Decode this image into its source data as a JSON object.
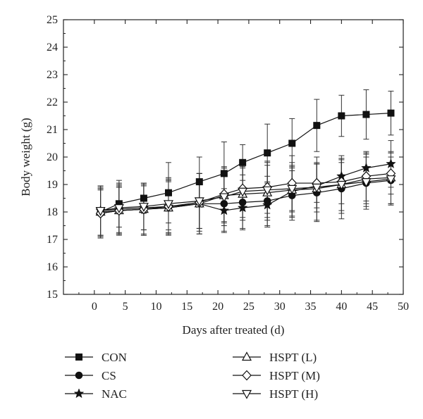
{
  "chart_data": {
    "type": "line",
    "title": "",
    "xlabel": "Days after treated (d)",
    "ylabel": "Body weight (g)",
    "xlim": [
      -5,
      50
    ],
    "ylim": [
      15,
      25
    ],
    "xticks": [
      0,
      5,
      10,
      15,
      20,
      25,
      30,
      35,
      40,
      45,
      50
    ],
    "yticks": [
      15,
      16,
      17,
      18,
      19,
      20,
      21,
      22,
      23,
      24,
      25
    ],
    "grid": false,
    "legend_position": "bottom",
    "series": [
      {
        "name": "CON",
        "marker": "square-filled",
        "x": [
          1,
          4,
          8,
          12,
          17,
          21,
          24,
          28,
          32,
          36,
          40,
          44,
          48
        ],
        "y": [
          18.0,
          18.3,
          18.5,
          18.7,
          19.1,
          19.4,
          19.8,
          20.15,
          20.5,
          21.15,
          21.5,
          21.55,
          21.6
        ],
        "err": [
          0.9,
          0.85,
          0.55,
          1.1,
          0.9,
          1.15,
          0.65,
          1.05,
          0.9,
          0.95,
          0.75,
          0.9,
          0.8
        ]
      },
      {
        "name": "CS",
        "marker": "circle-filled",
        "x": [
          1,
          4,
          8,
          12,
          17,
          21,
          24,
          28,
          32,
          36,
          40,
          44,
          48
        ],
        "y": [
          17.95,
          18.05,
          18.1,
          18.15,
          18.3,
          18.3,
          18.35,
          18.4,
          18.6,
          18.7,
          18.85,
          19.05,
          19.15
        ],
        "err": [
          0.85,
          0.9,
          0.95,
          0.95,
          1.1,
          1.0,
          1.0,
          0.9,
          0.9,
          1.05,
          1.1,
          0.95,
          0.85
        ]
      },
      {
        "name": "NAC",
        "marker": "star-filled",
        "x": [
          1,
          4,
          8,
          12,
          17,
          21,
          24,
          28,
          32,
          36,
          40,
          44,
          48
        ],
        "y": [
          18.05,
          18.1,
          18.15,
          18.2,
          18.3,
          18.05,
          18.15,
          18.25,
          18.75,
          18.95,
          19.3,
          19.6,
          19.75
        ],
        "err": [
          0.9,
          0.9,
          0.8,
          0.95,
          0.9,
          0.8,
          0.75,
          0.8,
          0.9,
          0.8,
          0.5,
          0.55,
          0.85
        ]
      },
      {
        "name": "HSPT (L)",
        "marker": "triangle-up-open",
        "x": [
          1,
          4,
          8,
          12,
          17,
          21,
          24,
          28,
          32,
          36,
          40,
          44,
          48
        ],
        "y": [
          18.0,
          18.05,
          18.1,
          18.15,
          18.3,
          18.6,
          18.65,
          18.7,
          18.8,
          18.85,
          19.0,
          19.2,
          19.25
        ],
        "err": [
          0.85,
          0.85,
          0.9,
          1.0,
          1.1,
          1.0,
          0.95,
          1.0,
          1.0,
          1.15,
          1.05,
          0.9,
          0.95
        ]
      },
      {
        "name": "HSPT (M)",
        "marker": "diamond-open",
        "x": [
          1,
          4,
          8,
          12,
          17,
          21,
          24,
          28,
          32,
          36,
          40,
          44,
          48
        ],
        "y": [
          17.95,
          18.05,
          18.1,
          18.2,
          18.35,
          18.65,
          18.85,
          18.9,
          19.05,
          19.05,
          19.1,
          19.3,
          19.4
        ],
        "err": [
          0.9,
          0.85,
          0.95,
          1.0,
          1.05,
          1.0,
          0.8,
          0.95,
          1.0,
          0.7,
          0.8,
          0.9,
          0.75
        ]
      },
      {
        "name": "HSPT (H)",
        "marker": "triangle-down-open",
        "x": [
          1,
          4,
          8,
          12,
          17,
          21,
          24,
          28,
          32,
          36,
          40,
          44,
          48
        ],
        "y": [
          18.05,
          18.15,
          18.2,
          18.3,
          18.4,
          18.55,
          18.75,
          18.8,
          18.85,
          18.9,
          19.0,
          19.1,
          19.2
        ],
        "err": [
          0.9,
          0.9,
          0.85,
          0.95,
          1.0,
          1.05,
          0.95,
          1.0,
          0.85,
          0.9,
          0.95,
          0.9,
          0.95
        ]
      }
    ]
  }
}
